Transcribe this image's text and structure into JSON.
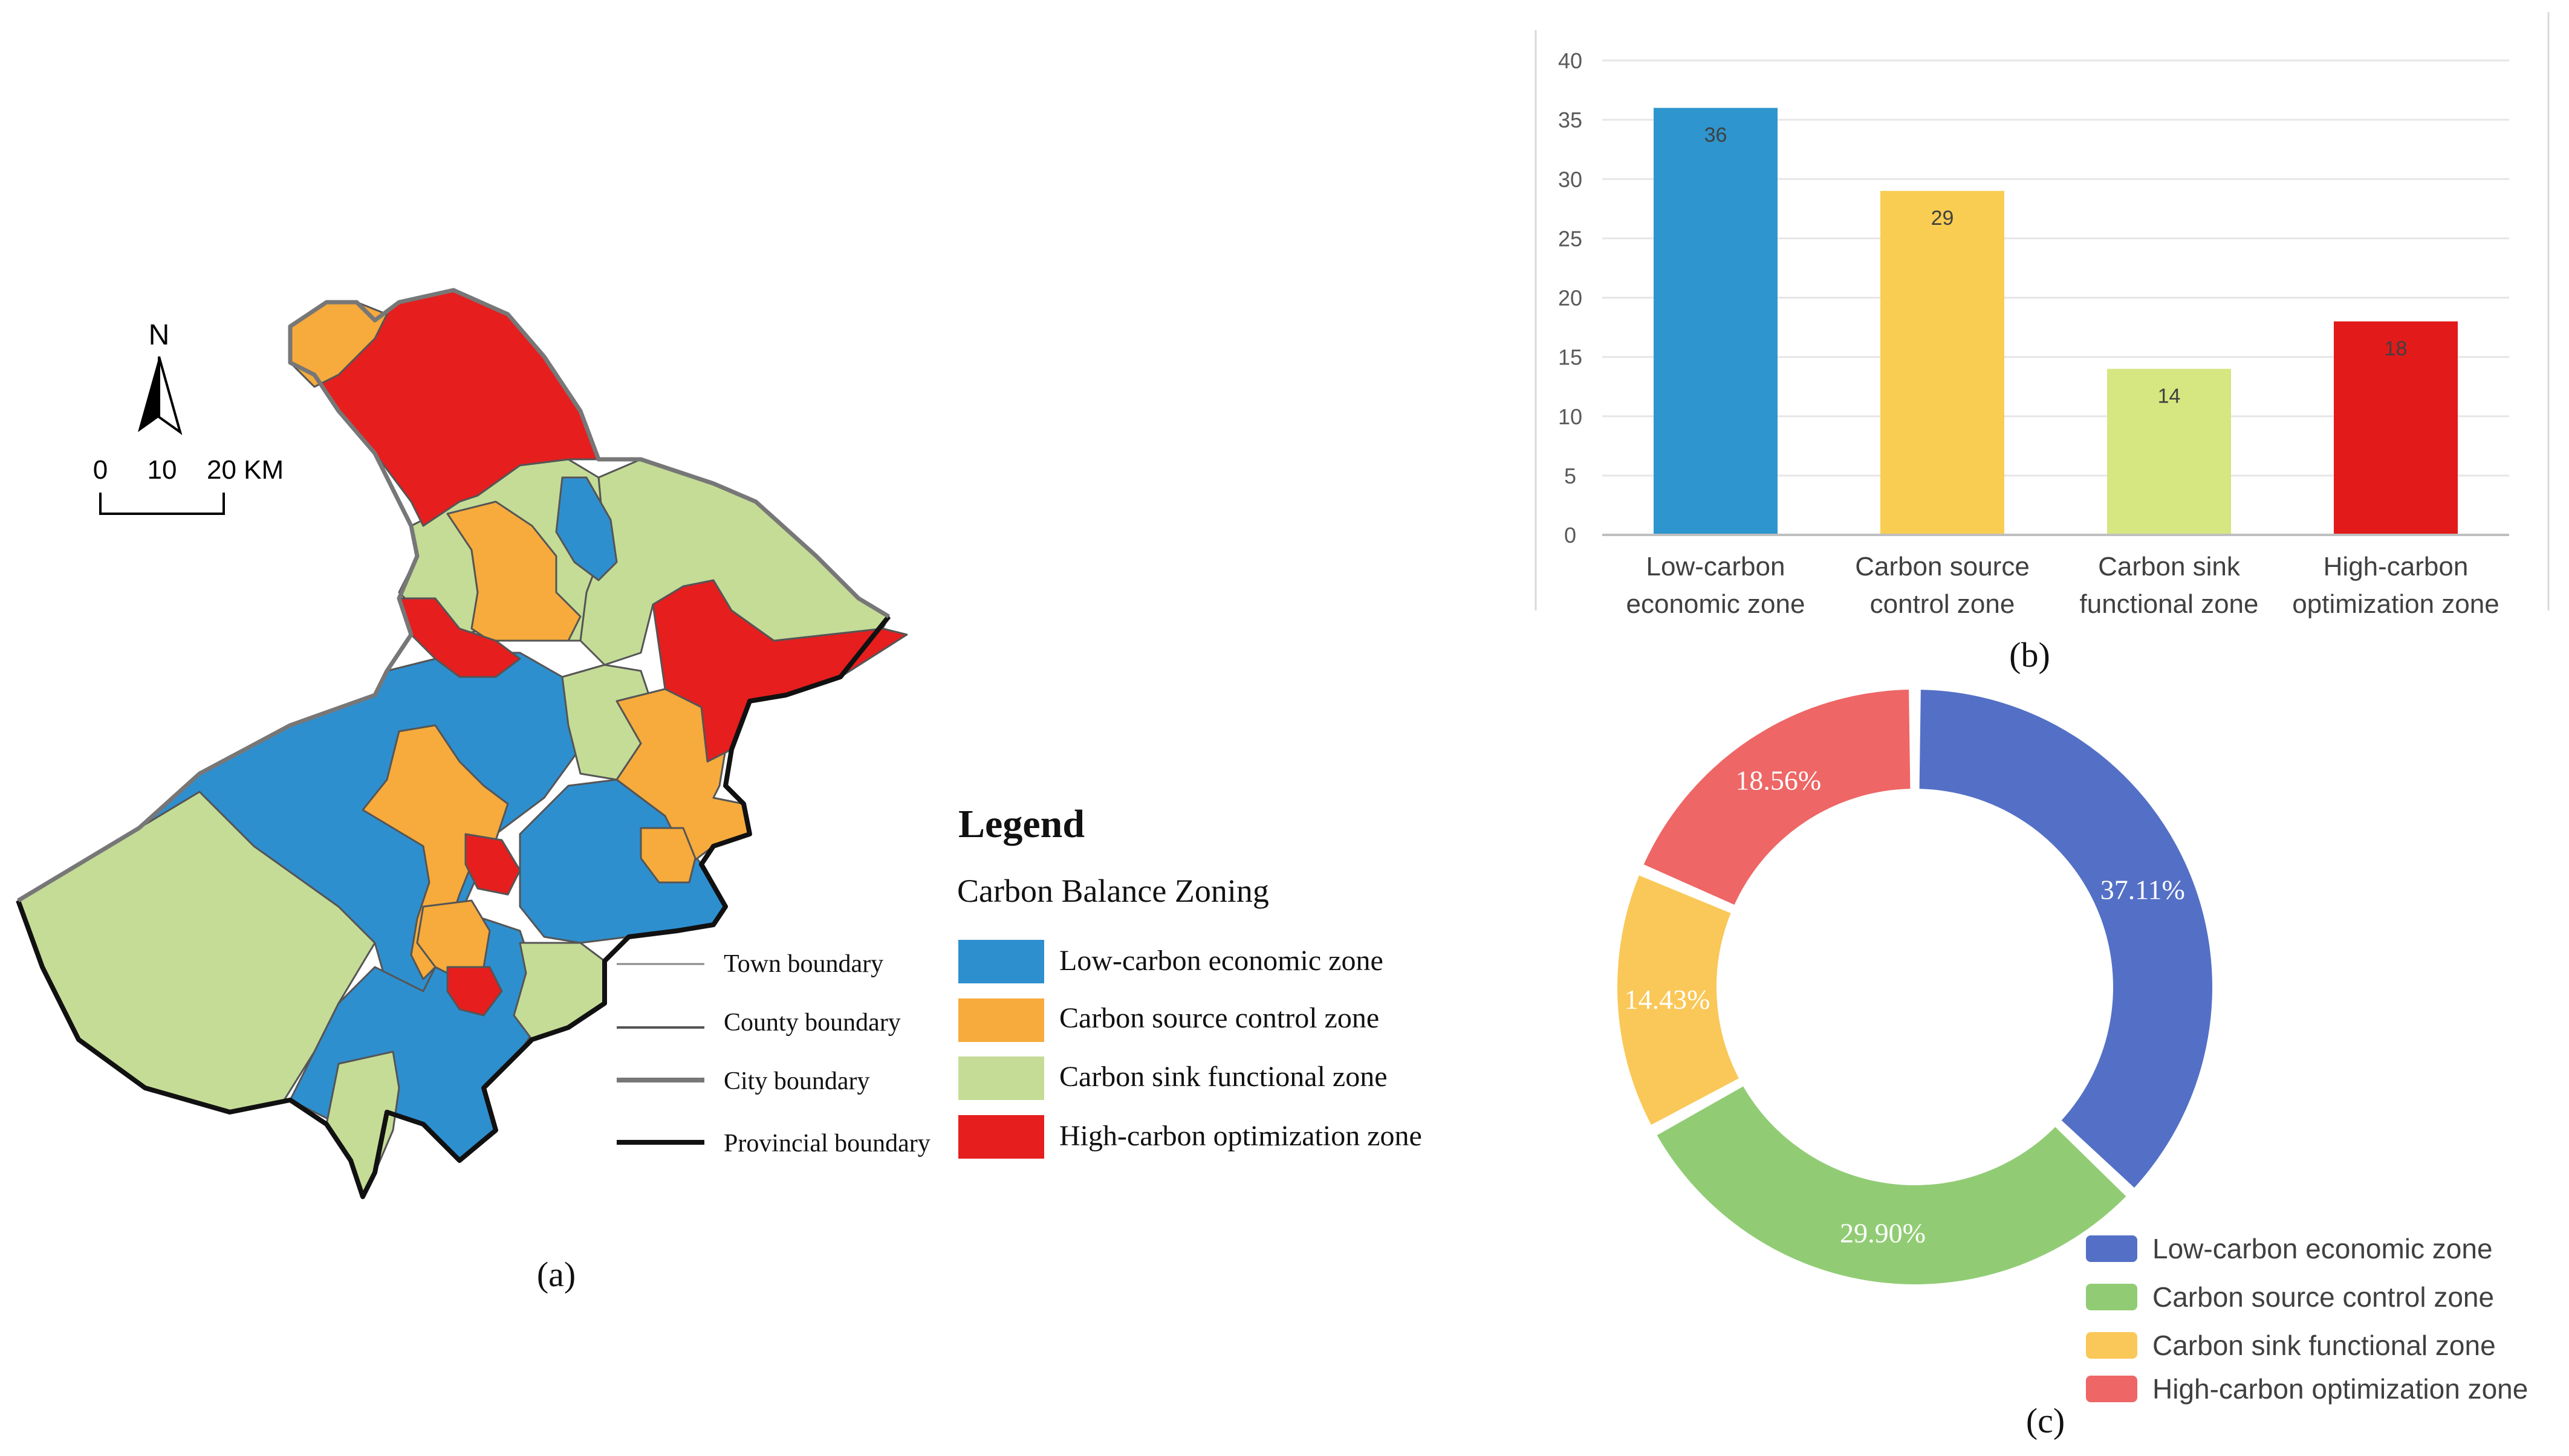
{
  "map": {
    "north_label": "N",
    "scale": {
      "ticks": [
        "0",
        "10",
        "20 KM"
      ]
    },
    "panel_label": "(a)",
    "boundary_legend": [
      {
        "label": "Town boundary"
      },
      {
        "label": "County boundary"
      },
      {
        "label": "City boundary"
      },
      {
        "label": "Provincial boundary"
      }
    ],
    "legend": {
      "title": "Legend",
      "subtitle": "Carbon Balance Zoning",
      "items": [
        {
          "label": "Low-carbon economic zone",
          "color": "#2e8fcf"
        },
        {
          "label": "Carbon source control zone",
          "color": "#f6ab3c"
        },
        {
          "label": "Carbon sink functional zone",
          "color": "#c5dc97"
        },
        {
          "label": "High-carbon optimization zone",
          "color": "#e61e1e"
        }
      ]
    }
  },
  "chart_data": [
    {
      "type": "bar",
      "panel_label": "(b)",
      "categories": [
        "Low-carbon economic zone",
        "Carbon source control zone",
        "Carbon sink functional zone",
        "High-carbon optimization zone"
      ],
      "category_lines": [
        [
          "Low-carbon",
          "economic zone"
        ],
        [
          "Carbon source",
          "control zone"
        ],
        [
          "Carbon sink",
          "functional zone"
        ],
        [
          "High-carbon",
          "optimization zone"
        ]
      ],
      "values": [
        36,
        29,
        14,
        18
      ],
      "value_labels": [
        "36",
        "29",
        "14",
        "18"
      ],
      "colors": [
        "#2e95ce",
        "#f8cd52",
        "#d6e680",
        "#e21a1a"
      ],
      "ylim": [
        0,
        40
      ],
      "yticks": [
        "0",
        "5",
        "10",
        "15",
        "20",
        "25",
        "30",
        "35",
        "40"
      ],
      "grid": true
    },
    {
      "type": "pie",
      "panel_label": "(c)",
      "labels": [
        "Low-carbon economic zone",
        "Carbon source control zone",
        "Carbon sink functional zone",
        "High-carbon optimization zone"
      ],
      "values": [
        37.11,
        29.9,
        14.43,
        18.56
      ],
      "value_labels": [
        "37.11%",
        "29.90%",
        "14.43%",
        "18.56%"
      ],
      "colors": [
        "#5470c6",
        "#91cc75",
        "#fac858",
        "#ee6666"
      ],
      "legend_position": "bottom-right"
    }
  ]
}
